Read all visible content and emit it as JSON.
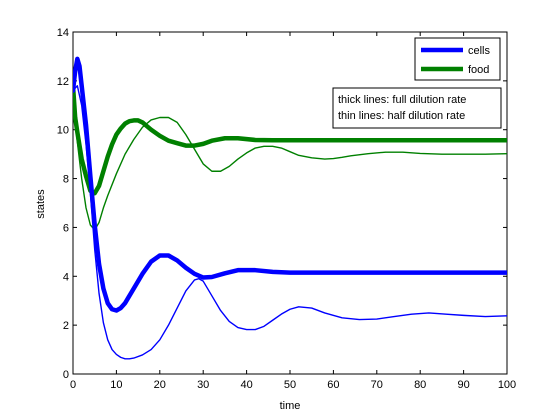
{
  "chart_data": {
    "type": "line",
    "title": "",
    "xlabel": "time",
    "ylabel": "states",
    "xlim": [
      0,
      100
    ],
    "ylim": [
      0,
      14
    ],
    "xticks": [
      0,
      10,
      20,
      30,
      40,
      50,
      60,
      70,
      80,
      90,
      100
    ],
    "yticks": [
      0,
      2,
      4,
      6,
      8,
      10,
      12,
      14
    ],
    "grid": false,
    "legend": {
      "position": "top-right",
      "entries": [
        {
          "name": "cells",
          "color": "#0000ff"
        },
        {
          "name": "food",
          "color": "#008000"
        }
      ]
    },
    "annotation": {
      "position": "upper-right",
      "lines": [
        "thick lines: full dilution rate",
        "thin lines: half dilution rate"
      ]
    },
    "colors": {
      "cells": "#0000ff",
      "food": "#008000"
    },
    "series": [
      {
        "name": "cells",
        "variant": "full dilution rate",
        "line_weight": "thick",
        "color": "#0000ff",
        "x": [
          0,
          0.5,
          1,
          1.5,
          2,
          3,
          4,
          5,
          6,
          7,
          8,
          9,
          10,
          11,
          12,
          14,
          16,
          18,
          20,
          22,
          24,
          26,
          28,
          30,
          32,
          35,
          38,
          42,
          46,
          50,
          55,
          60,
          70,
          80,
          90,
          100
        ],
        "y": [
          11.6,
          12.4,
          12.9,
          12.6,
          11.8,
          10.2,
          8.1,
          6.1,
          4.5,
          3.5,
          2.9,
          2.65,
          2.6,
          2.7,
          2.9,
          3.5,
          4.1,
          4.6,
          4.85,
          4.85,
          4.65,
          4.35,
          4.1,
          3.95,
          3.97,
          4.12,
          4.25,
          4.25,
          4.18,
          4.15,
          4.15,
          4.15,
          4.15,
          4.15,
          4.15,
          4.15
        ]
      },
      {
        "name": "cells",
        "variant": "half dilution rate",
        "line_weight": "thin",
        "color": "#0000ff",
        "x": [
          0,
          1,
          2,
          3,
          4,
          5,
          6,
          7,
          8,
          9,
          10,
          11,
          12,
          13,
          14,
          16,
          18,
          20,
          22,
          24,
          26,
          28,
          29,
          30,
          32,
          34,
          36,
          38,
          40,
          42,
          44,
          46,
          48,
          50,
          52,
          55,
          58,
          62,
          66,
          70,
          74,
          78,
          82,
          86,
          90,
          95,
          100
        ],
        "y": [
          11.6,
          11.8,
          11.0,
          9.4,
          7.4,
          5.1,
          3.3,
          2.1,
          1.4,
          1.0,
          0.8,
          0.68,
          0.62,
          0.62,
          0.65,
          0.78,
          1.0,
          1.4,
          2.0,
          2.7,
          3.4,
          3.85,
          3.9,
          3.8,
          3.2,
          2.6,
          2.15,
          1.9,
          1.82,
          1.82,
          1.95,
          2.2,
          2.45,
          2.65,
          2.75,
          2.7,
          2.5,
          2.3,
          2.23,
          2.25,
          2.35,
          2.45,
          2.5,
          2.45,
          2.4,
          2.35,
          2.38
        ]
      },
      {
        "name": "food",
        "variant": "full dilution rate",
        "line_weight": "thick",
        "color": "#008000",
        "x": [
          0,
          0.5,
          1,
          2,
          3,
          4,
          5,
          6,
          7,
          8,
          9,
          10,
          11,
          12,
          13,
          14,
          15,
          16,
          17,
          18,
          20,
          22,
          24,
          26,
          28,
          30,
          32,
          35,
          38,
          42,
          46,
          50,
          60,
          70,
          80,
          90,
          100
        ],
        "y": [
          11.8,
          10.5,
          9.9,
          8.8,
          8.1,
          7.5,
          7.4,
          7.7,
          8.3,
          8.9,
          9.4,
          9.8,
          10.05,
          10.25,
          10.35,
          10.38,
          10.38,
          10.3,
          10.15,
          10.0,
          9.75,
          9.55,
          9.45,
          9.35,
          9.35,
          9.42,
          9.55,
          9.65,
          9.65,
          9.58,
          9.57,
          9.57,
          9.57,
          9.57,
          9.57,
          9.57,
          9.57
        ]
      },
      {
        "name": "food",
        "variant": "half dilution rate",
        "line_weight": "thin",
        "color": "#008000",
        "x": [
          0,
          0.5,
          1,
          2,
          3,
          4,
          5,
          6,
          7,
          8,
          10,
          12,
          14,
          16,
          18,
          20,
          22,
          24,
          26,
          28,
          30,
          32,
          34,
          36,
          38,
          40,
          42,
          44,
          46,
          48,
          50,
          52,
          55,
          58,
          60,
          62,
          64,
          68,
          72,
          76,
          80,
          85,
          90,
          95,
          100
        ],
        "y": [
          11.8,
          10.4,
          9.5,
          8.0,
          6.8,
          6.1,
          5.9,
          6.2,
          6.8,
          7.3,
          8.2,
          9.0,
          9.6,
          10.1,
          10.4,
          10.5,
          10.5,
          10.3,
          9.8,
          9.2,
          8.6,
          8.3,
          8.3,
          8.5,
          8.8,
          9.05,
          9.25,
          9.32,
          9.32,
          9.25,
          9.1,
          8.95,
          8.85,
          8.8,
          8.82,
          8.87,
          8.93,
          9.02,
          9.08,
          9.08,
          9.03,
          9.0,
          9.0,
          9.0,
          9.02
        ]
      }
    ]
  }
}
